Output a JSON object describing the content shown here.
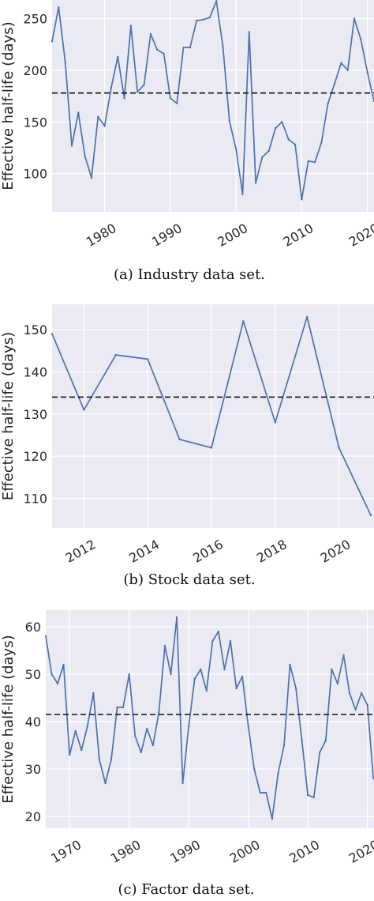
{
  "chart_data": [
    {
      "type": "line",
      "ylabel": "Effective half-life (days)",
      "caption": "(a) Industry data set.",
      "xlim": [
        1972,
        2021
      ],
      "ylim": [
        63,
        268
      ],
      "xticks": [
        1980,
        1990,
        2000,
        2010,
        2020
      ],
      "yticks": [
        100,
        150,
        200,
        250
      ],
      "grid": true,
      "reference_line": 178,
      "x": [
        1972,
        1973,
        1974,
        1975,
        1976,
        1977,
        1978,
        1979,
        1980,
        1981,
        1982,
        1983,
        1984,
        1985,
        1986,
        1987,
        1988,
        1989,
        1990,
        1991,
        1992,
        1993,
        1994,
        1995,
        1996,
        1997,
        1998,
        1999,
        2000,
        2001,
        2002,
        2003,
        2004,
        2005,
        2006,
        2007,
        2008,
        2009,
        2010,
        2011,
        2012,
        2013,
        2014,
        2015,
        2016,
        2017,
        2018,
        2019,
        2020,
        2021
      ],
      "y": [
        228,
        261,
        208,
        127,
        159,
        117,
        96,
        155,
        146,
        183,
        213,
        173,
        243,
        179,
        186,
        235,
        220,
        216,
        173,
        168,
        222,
        222,
        248,
        249,
        251,
        267,
        223,
        151,
        124,
        80,
        237,
        91,
        116,
        122,
        144,
        150,
        133,
        128,
        75,
        112,
        111,
        130,
        168,
        187,
        207,
        200,
        250,
        230,
        198,
        170
      ]
    },
    {
      "type": "line",
      "ylabel": "Effective half-life (days)",
      "caption": "(b) Stock data set.",
      "xlim": [
        2011,
        2021.1
      ],
      "ylim": [
        103,
        156
      ],
      "xticks": [
        2012,
        2014,
        2016,
        2018,
        2020
      ],
      "yticks": [
        110,
        120,
        130,
        140,
        150
      ],
      "grid": true,
      "reference_line": 134,
      "x": [
        2011,
        2012,
        2013,
        2014,
        2015,
        2016,
        2017,
        2018,
        2019,
        2020,
        2021
      ],
      "y": [
        149,
        131,
        144,
        143,
        124,
        122,
        152,
        128,
        153,
        122,
        106
      ]
    },
    {
      "type": "line",
      "ylabel": "Effective half-life (days)",
      "caption": "(c) Factor data set.",
      "xlim": [
        1966,
        2021.1
      ],
      "ylim": [
        17.5,
        63.5
      ],
      "xticks": [
        1970,
        1980,
        1990,
        2000,
        2010,
        2020
      ],
      "yticks": [
        20,
        30,
        40,
        50,
        60
      ],
      "grid": true,
      "reference_line": 41.5,
      "x": [
        1966,
        1967,
        1968,
        1969,
        1970,
        1971,
        1972,
        1973,
        1974,
        1975,
        1976,
        1977,
        1978,
        1979,
        1980,
        1981,
        1982,
        1983,
        1984,
        1985,
        1986,
        1987,
        1988,
        1989,
        1990,
        1991,
        1992,
        1993,
        1994,
        1995,
        1996,
        1997,
        1998,
        1999,
        2000,
        2001,
        2002,
        2003,
        2004,
        2005,
        2006,
        2007,
        2008,
        2009,
        2010,
        2011,
        2012,
        2013,
        2014,
        2015,
        2016,
        2017,
        2018,
        2019,
        2020,
        2021
      ],
      "y": [
        58,
        50,
        48,
        52,
        33,
        38,
        34,
        39,
        46,
        32,
        27,
        32,
        43,
        43,
        50,
        37,
        33.5,
        38.5,
        35,
        42,
        56,
        50,
        62,
        27,
        39,
        49,
        51,
        46.5,
        57,
        59,
        51,
        57,
        47,
        49.5,
        39,
        30,
        25,
        25,
        19.5,
        29,
        35,
        52,
        47,
        36,
        24.5,
        24,
        33.5,
        36,
        51,
        48,
        54,
        46,
        42.5,
        46,
        43.5,
        28
      ]
    }
  ],
  "colors": {
    "background": "#eaeaf2",
    "grid": "#ffffff",
    "line": "#4c72b0",
    "reference_line": "#111111"
  }
}
